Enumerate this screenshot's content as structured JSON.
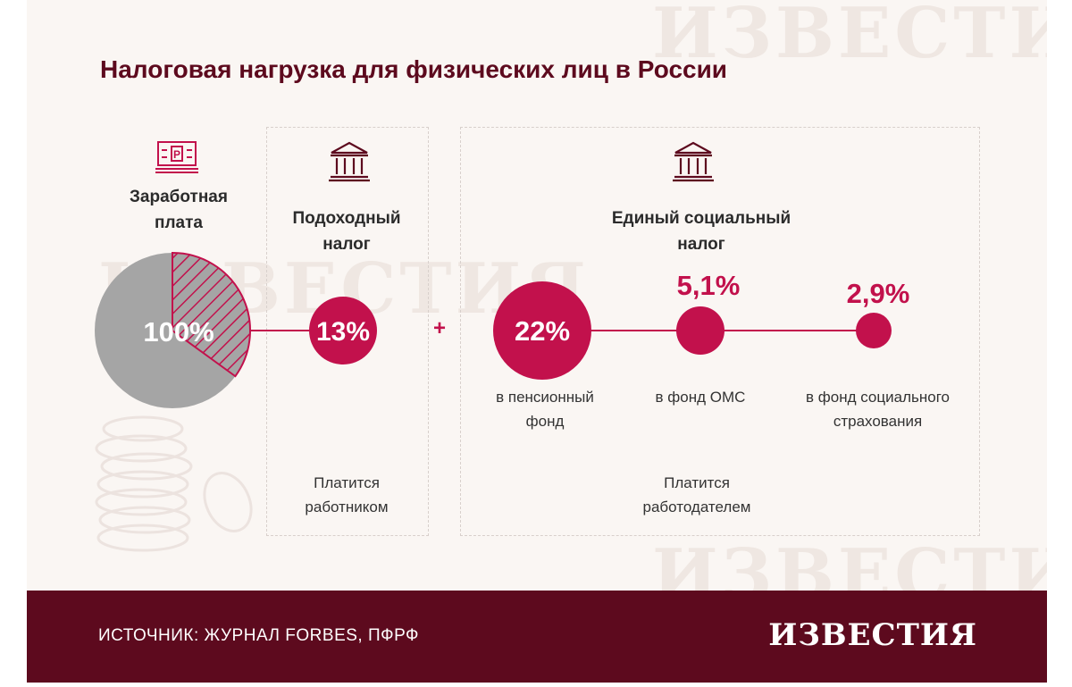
{
  "title": "Налоговая нагрузка для физических лиц в России",
  "salary": {
    "label_line1": "Заработная",
    "label_line2": "плата",
    "value": "100%",
    "hatched_share": 0.35,
    "icon": "ruble-banknote-icon"
  },
  "income_tax": {
    "label_line1": "Подоходный",
    "label_line2": "налог",
    "value": "13%",
    "payer_line1": "Платится",
    "payer_line2": "работником",
    "icon": "bank-building-icon"
  },
  "plus_sign": "+",
  "social_tax": {
    "label_line1": "Единый социальный",
    "label_line2": "налог",
    "icon": "bank-building-icon",
    "payer_line1": "Платится",
    "payer_line2": "работодателем",
    "parts": [
      {
        "value": "22%",
        "label_line1": "в пенсионный",
        "label_line2": "фонд"
      },
      {
        "value": "5,1%",
        "label_line1": "в фонд ОМС",
        "label_line2": ""
      },
      {
        "value": "2,9%",
        "label_line1": "в фонд социального",
        "label_line2": "страхования"
      }
    ]
  },
  "footer": {
    "source": "ИСТОЧНИК: ЖУРНАЛ FORBES, ПФРФ",
    "logo": "ИЗВЕСТИЯ"
  },
  "colors": {
    "accent": "#c2114c",
    "dark": "#5d0a1e",
    "pie_gray": "#a5a5a5",
    "background": "#faf6f3"
  }
}
